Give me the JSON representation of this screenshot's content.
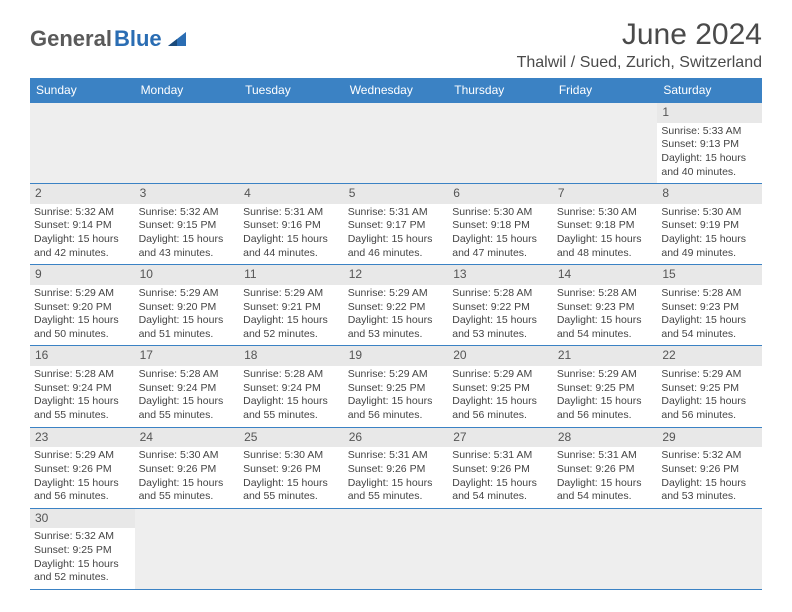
{
  "brand": {
    "general": "General",
    "blue": "Blue"
  },
  "title": "June 2024",
  "location": "Thalwil / Sued, Zurich, Switzerland",
  "colors": {
    "header_bg": "#3b82c4",
    "header_text": "#ffffff",
    "daynum_bg": "#e8e8e8",
    "cell_border": "#3b82c4",
    "empty_bg": "#eeeeee",
    "text": "#444444"
  },
  "weekdays": [
    "Sunday",
    "Monday",
    "Tuesday",
    "Wednesday",
    "Thursday",
    "Friday",
    "Saturday"
  ],
  "weeks": [
    [
      null,
      null,
      null,
      null,
      null,
      null,
      {
        "d": "1",
        "sunrise": "Sunrise: 5:33 AM",
        "sunset": "Sunset: 9:13 PM",
        "day1": "Daylight: 15 hours",
        "day2": "and 40 minutes."
      }
    ],
    [
      {
        "d": "2",
        "sunrise": "Sunrise: 5:32 AM",
        "sunset": "Sunset: 9:14 PM",
        "day1": "Daylight: 15 hours",
        "day2": "and 42 minutes."
      },
      {
        "d": "3",
        "sunrise": "Sunrise: 5:32 AM",
        "sunset": "Sunset: 9:15 PM",
        "day1": "Daylight: 15 hours",
        "day2": "and 43 minutes."
      },
      {
        "d": "4",
        "sunrise": "Sunrise: 5:31 AM",
        "sunset": "Sunset: 9:16 PM",
        "day1": "Daylight: 15 hours",
        "day2": "and 44 minutes."
      },
      {
        "d": "5",
        "sunrise": "Sunrise: 5:31 AM",
        "sunset": "Sunset: 9:17 PM",
        "day1": "Daylight: 15 hours",
        "day2": "and 46 minutes."
      },
      {
        "d": "6",
        "sunrise": "Sunrise: 5:30 AM",
        "sunset": "Sunset: 9:18 PM",
        "day1": "Daylight: 15 hours",
        "day2": "and 47 minutes."
      },
      {
        "d": "7",
        "sunrise": "Sunrise: 5:30 AM",
        "sunset": "Sunset: 9:18 PM",
        "day1": "Daylight: 15 hours",
        "day2": "and 48 minutes."
      },
      {
        "d": "8",
        "sunrise": "Sunrise: 5:30 AM",
        "sunset": "Sunset: 9:19 PM",
        "day1": "Daylight: 15 hours",
        "day2": "and 49 minutes."
      }
    ],
    [
      {
        "d": "9",
        "sunrise": "Sunrise: 5:29 AM",
        "sunset": "Sunset: 9:20 PM",
        "day1": "Daylight: 15 hours",
        "day2": "and 50 minutes."
      },
      {
        "d": "10",
        "sunrise": "Sunrise: 5:29 AM",
        "sunset": "Sunset: 9:20 PM",
        "day1": "Daylight: 15 hours",
        "day2": "and 51 minutes."
      },
      {
        "d": "11",
        "sunrise": "Sunrise: 5:29 AM",
        "sunset": "Sunset: 9:21 PM",
        "day1": "Daylight: 15 hours",
        "day2": "and 52 minutes."
      },
      {
        "d": "12",
        "sunrise": "Sunrise: 5:29 AM",
        "sunset": "Sunset: 9:22 PM",
        "day1": "Daylight: 15 hours",
        "day2": "and 53 minutes."
      },
      {
        "d": "13",
        "sunrise": "Sunrise: 5:28 AM",
        "sunset": "Sunset: 9:22 PM",
        "day1": "Daylight: 15 hours",
        "day2": "and 53 minutes."
      },
      {
        "d": "14",
        "sunrise": "Sunrise: 5:28 AM",
        "sunset": "Sunset: 9:23 PM",
        "day1": "Daylight: 15 hours",
        "day2": "and 54 minutes."
      },
      {
        "d": "15",
        "sunrise": "Sunrise: 5:28 AM",
        "sunset": "Sunset: 9:23 PM",
        "day1": "Daylight: 15 hours",
        "day2": "and 54 minutes."
      }
    ],
    [
      {
        "d": "16",
        "sunrise": "Sunrise: 5:28 AM",
        "sunset": "Sunset: 9:24 PM",
        "day1": "Daylight: 15 hours",
        "day2": "and 55 minutes."
      },
      {
        "d": "17",
        "sunrise": "Sunrise: 5:28 AM",
        "sunset": "Sunset: 9:24 PM",
        "day1": "Daylight: 15 hours",
        "day2": "and 55 minutes."
      },
      {
        "d": "18",
        "sunrise": "Sunrise: 5:28 AM",
        "sunset": "Sunset: 9:24 PM",
        "day1": "Daylight: 15 hours",
        "day2": "and 55 minutes."
      },
      {
        "d": "19",
        "sunrise": "Sunrise: 5:29 AM",
        "sunset": "Sunset: 9:25 PM",
        "day1": "Daylight: 15 hours",
        "day2": "and 56 minutes."
      },
      {
        "d": "20",
        "sunrise": "Sunrise: 5:29 AM",
        "sunset": "Sunset: 9:25 PM",
        "day1": "Daylight: 15 hours",
        "day2": "and 56 minutes."
      },
      {
        "d": "21",
        "sunrise": "Sunrise: 5:29 AM",
        "sunset": "Sunset: 9:25 PM",
        "day1": "Daylight: 15 hours",
        "day2": "and 56 minutes."
      },
      {
        "d": "22",
        "sunrise": "Sunrise: 5:29 AM",
        "sunset": "Sunset: 9:25 PM",
        "day1": "Daylight: 15 hours",
        "day2": "and 56 minutes."
      }
    ],
    [
      {
        "d": "23",
        "sunrise": "Sunrise: 5:29 AM",
        "sunset": "Sunset: 9:26 PM",
        "day1": "Daylight: 15 hours",
        "day2": "and 56 minutes."
      },
      {
        "d": "24",
        "sunrise": "Sunrise: 5:30 AM",
        "sunset": "Sunset: 9:26 PM",
        "day1": "Daylight: 15 hours",
        "day2": "and 55 minutes."
      },
      {
        "d": "25",
        "sunrise": "Sunrise: 5:30 AM",
        "sunset": "Sunset: 9:26 PM",
        "day1": "Daylight: 15 hours",
        "day2": "and 55 minutes."
      },
      {
        "d": "26",
        "sunrise": "Sunrise: 5:31 AM",
        "sunset": "Sunset: 9:26 PM",
        "day1": "Daylight: 15 hours",
        "day2": "and 55 minutes."
      },
      {
        "d": "27",
        "sunrise": "Sunrise: 5:31 AM",
        "sunset": "Sunset: 9:26 PM",
        "day1": "Daylight: 15 hours",
        "day2": "and 54 minutes."
      },
      {
        "d": "28",
        "sunrise": "Sunrise: 5:31 AM",
        "sunset": "Sunset: 9:26 PM",
        "day1": "Daylight: 15 hours",
        "day2": "and 54 minutes."
      },
      {
        "d": "29",
        "sunrise": "Sunrise: 5:32 AM",
        "sunset": "Sunset: 9:26 PM",
        "day1": "Daylight: 15 hours",
        "day2": "and 53 minutes."
      }
    ],
    [
      {
        "d": "30",
        "sunrise": "Sunrise: 5:32 AM",
        "sunset": "Sunset: 9:25 PM",
        "day1": "Daylight: 15 hours",
        "day2": "and 52 minutes."
      },
      null,
      null,
      null,
      null,
      null,
      null
    ]
  ]
}
